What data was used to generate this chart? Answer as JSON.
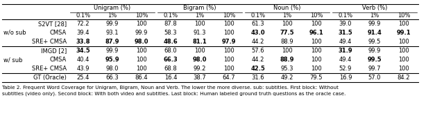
{
  "col_groups": [
    "Unigram (%)",
    "Bigram (%)",
    "Noun (%)",
    "Verb (%)"
  ],
  "sub_cols": [
    "0.1%",
    "1%",
    "10%"
  ],
  "row_groups": [
    {
      "group_label": "w/o sub",
      "rows": [
        {
          "label": "S2VT [28]",
          "data": [
            "72.2",
            "99.9",
            "100",
            "87.8",
            "100",
            "100",
            "61.3",
            "100",
            "100",
            "39.0",
            "99.9",
            "100"
          ],
          "bold": [
            false,
            false,
            false,
            false,
            false,
            false,
            false,
            false,
            false,
            false,
            false,
            false
          ]
        },
        {
          "label": "CMSA",
          "data": [
            "39.4",
            "93.1",
            "99.9",
            "58.3",
            "91.3",
            "100",
            "43.0",
            "77.5",
            "96.1",
            "31.5",
            "91.4",
            "99.1"
          ],
          "bold": [
            false,
            false,
            false,
            false,
            false,
            false,
            true,
            true,
            true,
            true,
            true,
            true
          ]
        },
        {
          "label": "SRE+ CMSA",
          "data": [
            "33.8",
            "87.9",
            "98.0",
            "48.6",
            "81.1",
            "97.9",
            "44.2",
            "88.9",
            "100",
            "49.4",
            "99.5",
            "100"
          ],
          "bold": [
            true,
            true,
            true,
            true,
            true,
            true,
            false,
            false,
            false,
            false,
            false,
            false
          ]
        }
      ]
    },
    {
      "group_label": "w/ sub",
      "rows": [
        {
          "label": "IMGD [2]",
          "data": [
            "34.5",
            "99.9",
            "100",
            "68.0",
            "100",
            "100",
            "57.6",
            "100",
            "100",
            "31.9",
            "99.9",
            "100"
          ],
          "bold": [
            true,
            false,
            false,
            false,
            false,
            false,
            false,
            false,
            false,
            true,
            false,
            false
          ]
        },
        {
          "label": "CMSA",
          "data": [
            "40.4",
            "95.9",
            "100",
            "66.3",
            "98.0",
            "100",
            "44.2",
            "88.9",
            "100",
            "49.4",
            "99.5",
            "100"
          ],
          "bold": [
            false,
            true,
            false,
            true,
            true,
            false,
            false,
            true,
            false,
            false,
            true,
            false
          ]
        },
        {
          "label": "SRE+ CMSA",
          "data": [
            "43.9",
            "98.0",
            "100",
            "68.8",
            "99.2",
            "100",
            "42.5",
            "95.3",
            "100",
            "52.9",
            "99.7",
            "100"
          ],
          "bold": [
            false,
            false,
            false,
            false,
            false,
            false,
            true,
            false,
            false,
            false,
            false,
            false
          ]
        }
      ]
    },
    {
      "group_label": "",
      "rows": [
        {
          "label": "GT (Oracle)",
          "data": [
            "25.4",
            "66.3",
            "86.4",
            "16.4",
            "38.7",
            "64.7",
            "31.6",
            "49.2",
            "79.5",
            "16.9",
            "57.0",
            "84.2"
          ],
          "bold": [
            false,
            false,
            false,
            false,
            false,
            false,
            false,
            false,
            false,
            false,
            false,
            false
          ]
        }
      ]
    }
  ],
  "caption_line1": "Table 2. Frequent Word Coverage for Unigram, Bigram, Noun and Verb. The lower the more diverse. sub: subtitles. First block: Without",
  "caption_line2": "subtitles (video only). Second block: With both video and subtitles. Last block: Human labeled ground truth questions as the oracle case.",
  "figsize": [
    6.4,
    1.84
  ],
  "dpi": 100
}
